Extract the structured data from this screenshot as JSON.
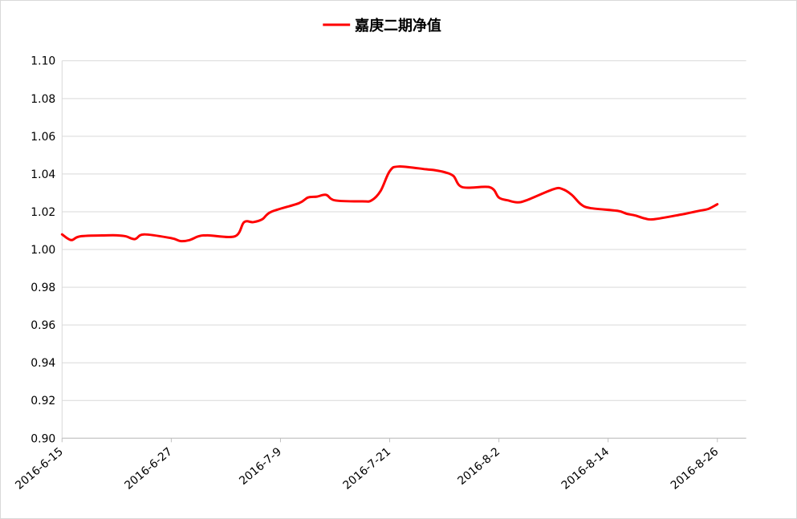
{
  "chart_data": {
    "type": "line",
    "title": "",
    "xlabel": "",
    "ylabel": "",
    "ylim": [
      0.9,
      1.1
    ],
    "grid": true,
    "legend_position": "top",
    "y_ticks": [
      "0.90",
      "0.92",
      "0.94",
      "0.96",
      "0.98",
      "1.00",
      "1.02",
      "1.04",
      "1.06",
      "1.08",
      "1.10"
    ],
    "x_ticks": [
      "2016-6-15",
      "2016-6-27",
      "2016-7-9",
      "2016-7-21",
      "2016-8-2",
      "2016-8-14",
      "2016-8-26"
    ],
    "series": [
      {
        "name": "嘉庚二期净值",
        "color": "#ff0000",
        "x": [
          "2016-6-15",
          "2016-6-16",
          "2016-6-17",
          "2016-6-20",
          "2016-6-21",
          "2016-6-22",
          "2016-6-23",
          "2016-6-24",
          "2016-6-27",
          "2016-6-28",
          "2016-6-29",
          "2016-6-30",
          "2016-7-1",
          "2016-7-4",
          "2016-7-5",
          "2016-7-6",
          "2016-7-7",
          "2016-7-8",
          "2016-7-11",
          "2016-7-12",
          "2016-7-13",
          "2016-7-14",
          "2016-7-15",
          "2016-7-18",
          "2016-7-19",
          "2016-7-20",
          "2016-7-21",
          "2016-7-22",
          "2016-7-25",
          "2016-7-26",
          "2016-7-27",
          "2016-7-28",
          "2016-7-29",
          "2016-8-1",
          "2016-8-2",
          "2016-8-3",
          "2016-8-4",
          "2016-8-5",
          "2016-8-8",
          "2016-8-9",
          "2016-8-10",
          "2016-8-11",
          "2016-8-12",
          "2016-8-15",
          "2016-8-16",
          "2016-8-17",
          "2016-8-18",
          "2016-8-19",
          "2016-8-22",
          "2016-8-23",
          "2016-8-24",
          "2016-8-25",
          "2016-8-26"
        ],
        "values": [
          1.008,
          1.005,
          1.007,
          1.0075,
          1.0075,
          1.007,
          1.0055,
          1.008,
          1.006,
          1.0045,
          1.005,
          1.007,
          1.0075,
          1.007,
          1.0145,
          1.0145,
          1.016,
          1.02,
          1.0245,
          1.0275,
          1.028,
          1.029,
          1.026,
          1.0255,
          1.026,
          1.031,
          1.0415,
          1.044,
          1.0425,
          1.042,
          1.041,
          1.039,
          1.033,
          1.033,
          1.0275,
          1.026,
          1.025,
          1.026,
          1.032,
          1.032,
          1.029,
          1.024,
          1.022,
          1.0205,
          1.019,
          1.018,
          1.0165,
          1.016,
          1.0185,
          1.0195,
          1.0205,
          1.0215,
          1.024
        ]
      }
    ]
  }
}
